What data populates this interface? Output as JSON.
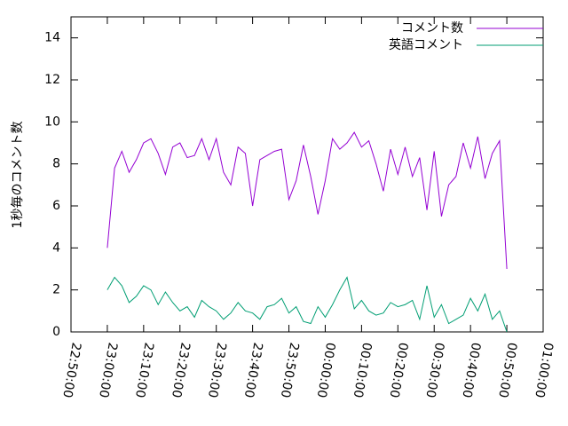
{
  "chart_data": {
    "type": "line",
    "ylabel": "1秒毎のコメント数",
    "x": [
      "23:00:00",
      "23:02:00",
      "23:04:00",
      "23:06:00",
      "23:08:00",
      "23:10:00",
      "23:12:00",
      "23:14:00",
      "23:16:00",
      "23:18:00",
      "23:20:00",
      "23:22:00",
      "23:24:00",
      "23:26:00",
      "23:28:00",
      "23:30:00",
      "23:32:00",
      "23:34:00",
      "23:36:00",
      "23:38:00",
      "23:40:00",
      "23:42:00",
      "23:44:00",
      "23:46:00",
      "23:48:00",
      "23:50:00",
      "23:52:00",
      "23:54:00",
      "23:56:00",
      "23:58:00",
      "00:00:00",
      "00:02:00",
      "00:04:00",
      "00:06:00",
      "00:08:00",
      "00:10:00",
      "00:12:00",
      "00:14:00",
      "00:16:00",
      "00:18:00",
      "00:20:00",
      "00:22:00",
      "00:24:00",
      "00:26:00",
      "00:28:00",
      "00:30:00",
      "00:32:00",
      "00:34:00",
      "00:36:00",
      "00:38:00",
      "00:40:00",
      "00:42:00",
      "00:44:00",
      "00:46:00",
      "00:48:00",
      "00:50:00"
    ],
    "series": [
      {
        "name": "コメント数",
        "color": "#9400d3",
        "values": [
          4,
          7.8,
          8.6,
          7.6,
          8.2,
          9.0,
          9.2,
          8.5,
          7.5,
          8.8,
          9.0,
          8.3,
          8.4,
          9.2,
          8.2,
          9.2,
          7.6,
          7.0,
          8.8,
          8.5,
          6.0,
          8.2,
          8.4,
          8.6,
          8.7,
          6.3,
          7.2,
          8.9,
          7.4,
          5.6,
          7.2,
          9.2,
          8.7,
          9.0,
          9.5,
          8.8,
          9.1,
          8.0,
          6.7,
          8.7,
          7.5,
          8.8,
          7.4,
          8.3,
          5.8,
          8.6,
          5.5,
          7.0,
          7.4,
          9.0,
          7.8,
          9.3,
          7.3,
          8.5,
          9.1,
          3
        ]
      },
      {
        "name": "英語コメント",
        "color": "#009e73",
        "values": [
          2.0,
          2.6,
          2.2,
          1.4,
          1.7,
          2.2,
          2.0,
          1.3,
          1.9,
          1.4,
          1.0,
          1.2,
          0.7,
          1.5,
          1.2,
          1.0,
          0.6,
          0.9,
          1.4,
          1.0,
          0.9,
          0.6,
          1.2,
          1.3,
          1.6,
          0.9,
          1.2,
          0.5,
          0.4,
          1.2,
          0.7,
          1.3,
          2.0,
          2.6,
          1.1,
          1.5,
          1.0,
          0.8,
          0.9,
          1.4,
          1.2,
          1.3,
          1.5,
          0.6,
          2.2,
          0.7,
          1.3,
          0.4,
          0.6,
          0.8,
          1.6,
          1.0,
          1.8,
          0.6,
          1.0,
          0
        ]
      }
    ],
    "xlim": [
      "22:50:00",
      "01:00:00"
    ],
    "xticks": [
      "22:50:00",
      "23:00:00",
      "23:10:00",
      "23:20:00",
      "23:30:00",
      "23:40:00",
      "23:50:00",
      "00:00:00",
      "00:10:00",
      "00:20:00",
      "00:30:00",
      "00:40:00",
      "00:50:00",
      "01:00:00"
    ],
    "ylim": [
      0,
      15
    ],
    "yticks": [
      0,
      2,
      4,
      6,
      8,
      10,
      12,
      14
    ],
    "legend": "top-right"
  }
}
